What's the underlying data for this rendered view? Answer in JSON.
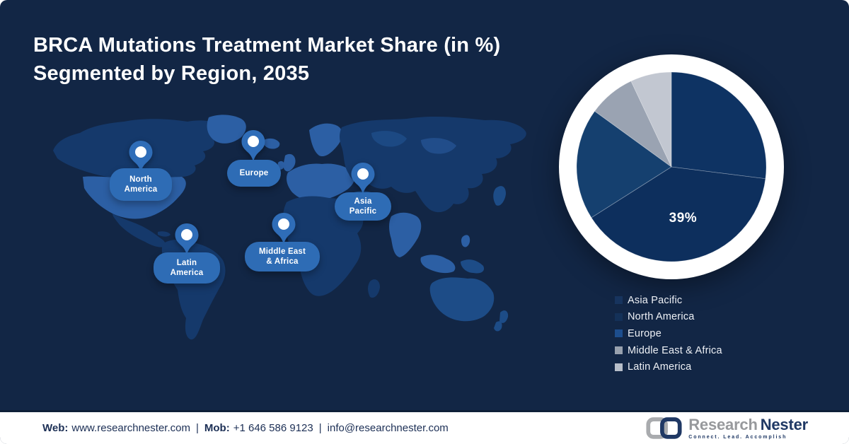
{
  "title": {
    "line1": "BRCA Mutations Treatment Market Share (in %)",
    "line2": "Segmented by Region, 2035"
  },
  "map": {
    "pins": [
      {
        "region": "North America",
        "line1": "North",
        "line2": "America"
      },
      {
        "region": "Europe",
        "line1": "Europe",
        "line2": ""
      },
      {
        "region": "Asia Pacific",
        "line1": "Asia",
        "line2": "Pacific"
      },
      {
        "region": "Middle East & Africa",
        "line1": "Middle East",
        "line2": "& Africa"
      },
      {
        "region": "Latin America",
        "line1": "Latin",
        "line2": "America"
      }
    ]
  },
  "chart_data": {
    "type": "pie",
    "title": "BRCA Mutations Treatment Market Share (in %) Segmented by Region, 2035",
    "unit": "%",
    "start_angle_deg": 0,
    "direction": "clockwise",
    "ring_color": "#ffffff",
    "series": [
      {
        "name": "Asia Pacific",
        "value": 27,
        "color": "#0e3363",
        "label": ""
      },
      {
        "name": "North America",
        "value": 39,
        "color": "#0d2f5d",
        "label": "39%"
      },
      {
        "name": "Europe",
        "value": 19,
        "color": "#15406f",
        "label": ""
      },
      {
        "name": "Middle East & Africa",
        "value": 8,
        "color": "#9aa3b2",
        "label": ""
      },
      {
        "name": "Latin America",
        "value": 7,
        "color": "#c2c7d1",
        "label": ""
      }
    ],
    "legend_position": "bottom-right"
  },
  "legend": {
    "items": [
      {
        "label": "Asia Pacific",
        "color": "#17345e"
      },
      {
        "label": "North America",
        "color": "#143158"
      },
      {
        "label": "Europe",
        "color": "#1d4e8e"
      },
      {
        "label": "Middle East & Africa",
        "color": "#98a1ae"
      },
      {
        "label": "Latin America",
        "color": "#b7bec9"
      }
    ]
  },
  "footer": {
    "web_label": "Web:",
    "web_value": "www.researchnester.com",
    "sep": "|",
    "mob_label": "Mob:",
    "mob_value": "+1 646 586 9123",
    "email": "info@researchnester.com"
  },
  "logo": {
    "brand_first": "Research",
    "brand_second": "Nester",
    "tagline": "Connect. Lead. Accomplish"
  },
  "colors": {
    "background": "#122645",
    "pin_blue": "#2f6db8",
    "label_pill_blue": "#2e6cb5",
    "land_base": "#15396b",
    "land_light": "#2c5fa4",
    "land_medium": "#1d4c87",
    "footer_text": "#1c2f55",
    "logo_gray": "#97999c",
    "logo_navy": "#1f3864",
    "pie_label_color": "#ffffff"
  }
}
